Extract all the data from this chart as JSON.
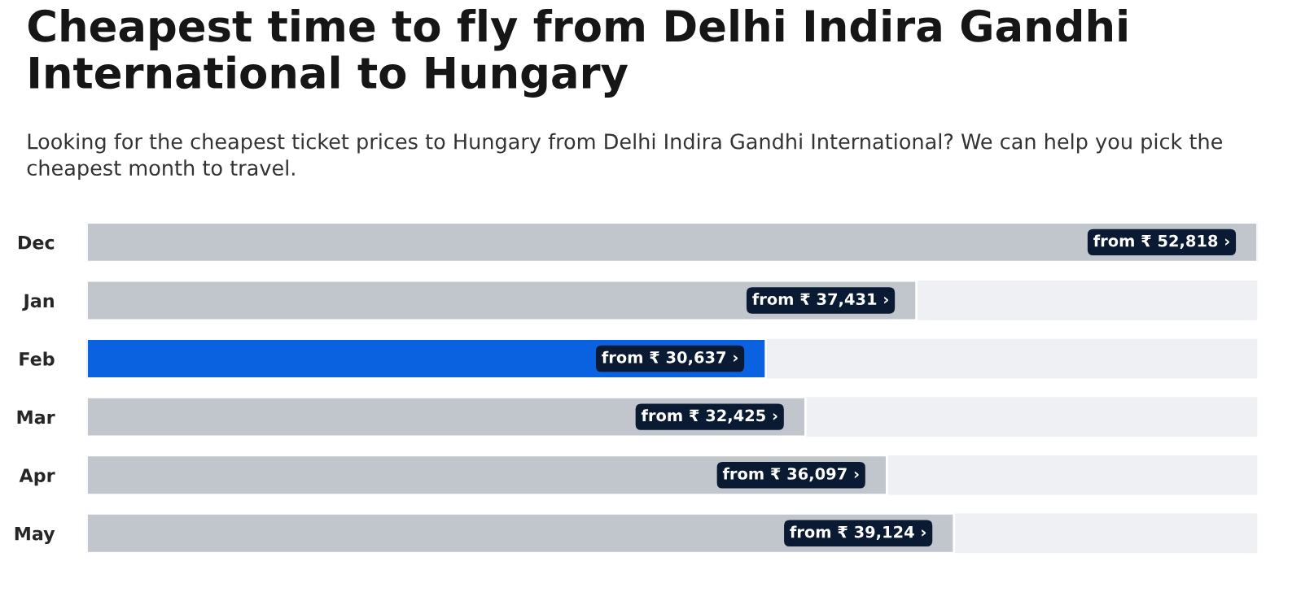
{
  "chart_data": {
    "type": "bar",
    "orientation": "horizontal",
    "title": "Cheapest time to fly from Delhi Indira Gandhi International to Hungary",
    "subtitle": "Looking for the cheapest ticket prices to Hungary from Delhi Indira Gandhi International? We can help you pick the cheapest month to travel.",
    "categories": [
      "Dec",
      "Jan",
      "Feb",
      "Mar",
      "Apr",
      "May"
    ],
    "values": [
      52818,
      37431,
      30637,
      32425,
      36097,
      39124
    ],
    "colors": [
      "#c1c5cc",
      "#c1c5cc",
      "#0a62e0",
      "#c1c5cc",
      "#c1c5cc",
      "#c1c5cc"
    ],
    "value_labels": [
      "from ₹ 52,818 ›",
      "from ₹ 37,431 ›",
      "from ₹ 30,637 ›",
      "from ₹ 32,425 ›",
      "from ₹ 36,097 ›",
      "from ₹ 39,124 ›"
    ],
    "grid": false,
    "legend": false,
    "tick_labels": "y"
  }
}
